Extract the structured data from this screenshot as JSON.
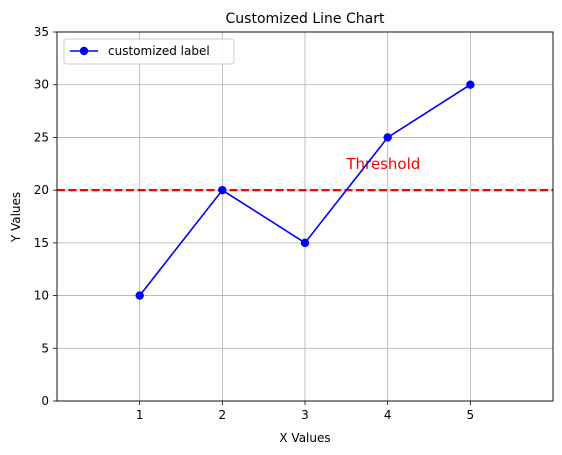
{
  "chart_data": {
    "type": "line",
    "title": "Customized Line Chart",
    "xlabel": "X Values",
    "ylabel": "Y Values",
    "xlim": [
      0,
      6
    ],
    "ylim": [
      0,
      35
    ],
    "xticks": [
      1,
      2,
      3,
      4,
      5
    ],
    "yticks": [
      0,
      5,
      10,
      15,
      20,
      25,
      30,
      35
    ],
    "grid": true,
    "legend_position": "top-left",
    "series": [
      {
        "name": "customized label",
        "x": [
          1,
          2,
          3,
          4,
          5
        ],
        "y": [
          10,
          20,
          15,
          25,
          30
        ],
        "color": "#0000ff",
        "marker": "circle"
      }
    ],
    "reference_line": {
      "orientation": "horizontal",
      "y": 20,
      "color": "#ff0000",
      "style": "dashed"
    },
    "annotation": {
      "text": "Threshold",
      "x": 3.5,
      "y": 22,
      "color": "#ff0000"
    }
  }
}
